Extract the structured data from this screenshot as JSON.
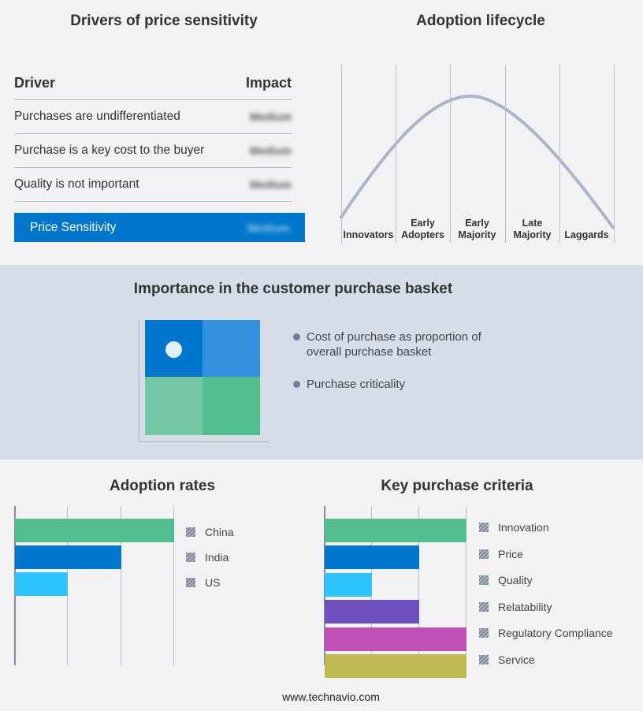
{
  "drivers": {
    "title": "Drivers of price sensitivity",
    "col_driver": "Driver",
    "col_impact": "Impact",
    "rows": [
      {
        "driver": "Purchases are undifferentiated",
        "impact": "Medium"
      },
      {
        "driver": "Purchase is a key cost to the buyer",
        "impact": "Medium"
      },
      {
        "driver": "Quality is not important",
        "impact": "Medium"
      }
    ],
    "summary": {
      "label": "Price Sensitivity",
      "impact": "Medium"
    },
    "accent": "#0077cc"
  },
  "lifecycle": {
    "title": "Adoption lifecycle",
    "stages": [
      [
        "Innovators"
      ],
      [
        "Early",
        "Adopters"
      ],
      [
        "Early",
        "Majority"
      ],
      [
        "Late",
        "Majority"
      ],
      [
        "Laggards"
      ]
    ]
  },
  "basket": {
    "title": "Importance in the customer purchase basket",
    "legend": [
      "Cost of purchase as proportion of overall purchase basket",
      "Purchase criticality"
    ],
    "quadrant_colors": [
      "#0077cc",
      "#3390dc",
      "#76c6a8",
      "#52be8f"
    ]
  },
  "chart_data": [
    {
      "type": "bar",
      "orientation": "horizontal",
      "title": "Adoption rates",
      "categories": [
        "China",
        "India",
        "US"
      ],
      "values": [
        3,
        2,
        1
      ],
      "colors": [
        "#52be8f",
        "#0077cc",
        "#2ec4ff"
      ],
      "xlim": [
        0,
        3
      ],
      "grid": true,
      "legend": "right"
    },
    {
      "type": "bar",
      "orientation": "horizontal",
      "title": "Key purchase criteria",
      "categories": [
        "Innovation",
        "Price",
        "Quality",
        "Relatability",
        "Regulatory Compliance",
        "Service"
      ],
      "values": [
        3,
        2,
        1,
        2,
        3,
        3
      ],
      "colors": [
        "#52be8f",
        "#0077cc",
        "#2ec4ff",
        "#6d4fbd",
        "#c050b5",
        "#bfba52"
      ],
      "xlim": [
        0,
        3
      ],
      "grid": true,
      "legend": "right"
    }
  ],
  "footer": "www.technavio.com"
}
